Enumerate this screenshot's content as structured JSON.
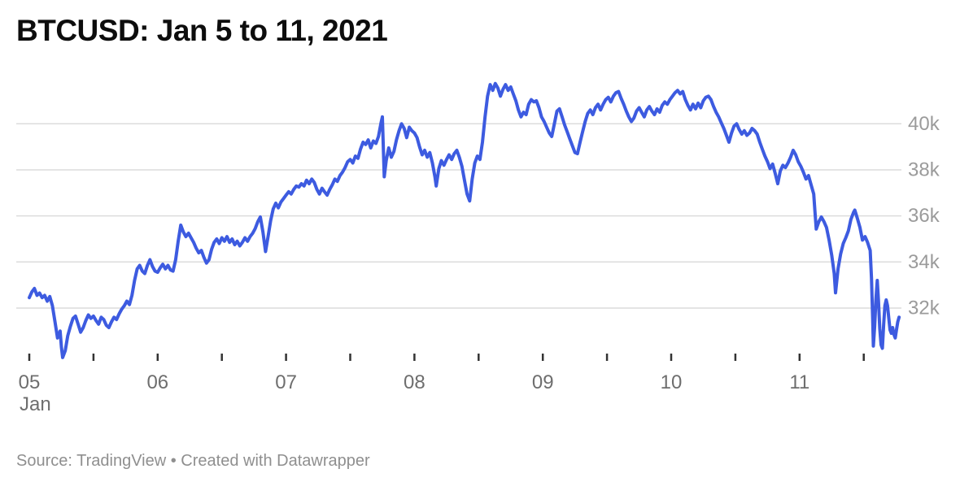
{
  "title": "BTCUSD: Jan 5 to 11, 2021",
  "source_note": "Source: TradingView • Created with Datawrapper",
  "colors": {
    "line": "#3d5be0",
    "grid": "#dcdcdc",
    "tick": "#333333",
    "x_label": "#6e6e6e",
    "y_label": "#9b9b9b",
    "title": "#0d0d0d",
    "source": "#8f8f8f",
    "background": "#ffffff"
  },
  "chart_data": {
    "type": "line",
    "title": "BTCUSD: Jan 5 to 11, 2021",
    "series_name": "BTCUSD",
    "x_unit": "day of January 2021 (fractional part = time of day)",
    "y_unit": "USD",
    "x_domain": [
      5,
      12
    ],
    "y_axis": {
      "tick_values": [
        32000,
        34000,
        36000,
        38000,
        40000
      ],
      "tick_labels": [
        "32k",
        "34k",
        "36k",
        "38k",
        "40k"
      ],
      "side": "right"
    },
    "x_axis": {
      "tick_days": [
        5,
        6,
        7,
        8,
        9,
        10,
        11
      ],
      "tick_labels": [
        "05",
        "06",
        "07",
        "08",
        "09",
        "10",
        "11"
      ],
      "month_label": "Jan",
      "minor_tick_step_days": 0.5,
      "minor_tick_start": 5.0,
      "minor_tick_end": 11.5
    },
    "grid": "horizontal",
    "legend": "none",
    "points": [
      [
        5.0,
        32450
      ],
      [
        5.02,
        32700
      ],
      [
        5.04,
        32850
      ],
      [
        5.06,
        32550
      ],
      [
        5.08,
        32650
      ],
      [
        5.1,
        32450
      ],
      [
        5.12,
        32550
      ],
      [
        5.14,
        32300
      ],
      [
        5.16,
        32500
      ],
      [
        5.18,
        32100
      ],
      [
        5.2,
        31400
      ],
      [
        5.22,
        30700
      ],
      [
        5.24,
        31000
      ],
      [
        5.25,
        30300
      ],
      [
        5.26,
        29850
      ],
      [
        5.28,
        30150
      ],
      [
        5.3,
        30800
      ],
      [
        5.32,
        31200
      ],
      [
        5.34,
        31550
      ],
      [
        5.36,
        31650
      ],
      [
        5.38,
        31300
      ],
      [
        5.4,
        30950
      ],
      [
        5.42,
        31150
      ],
      [
        5.44,
        31450
      ],
      [
        5.46,
        31700
      ],
      [
        5.48,
        31550
      ],
      [
        5.5,
        31650
      ],
      [
        5.52,
        31450
      ],
      [
        5.54,
        31300
      ],
      [
        5.56,
        31600
      ],
      [
        5.58,
        31500
      ],
      [
        5.6,
        31250
      ],
      [
        5.62,
        31150
      ],
      [
        5.64,
        31400
      ],
      [
        5.66,
        31600
      ],
      [
        5.68,
        31500
      ],
      [
        5.7,
        31750
      ],
      [
        5.72,
        31950
      ],
      [
        5.74,
        32100
      ],
      [
        5.76,
        32300
      ],
      [
        5.78,
        32150
      ],
      [
        5.8,
        32550
      ],
      [
        5.82,
        33200
      ],
      [
        5.84,
        33700
      ],
      [
        5.86,
        33850
      ],
      [
        5.88,
        33600
      ],
      [
        5.9,
        33500
      ],
      [
        5.92,
        33850
      ],
      [
        5.94,
        34100
      ],
      [
        5.96,
        33800
      ],
      [
        5.98,
        33600
      ],
      [
        6.0,
        33550
      ],
      [
        6.02,
        33750
      ],
      [
        6.04,
        33900
      ],
      [
        6.06,
        33700
      ],
      [
        6.08,
        33850
      ],
      [
        6.1,
        33650
      ],
      [
        6.12,
        33600
      ],
      [
        6.14,
        34100
      ],
      [
        6.16,
        34900
      ],
      [
        6.18,
        35600
      ],
      [
        6.2,
        35300
      ],
      [
        6.22,
        35100
      ],
      [
        6.24,
        35250
      ],
      [
        6.26,
        35050
      ],
      [
        6.28,
        34850
      ],
      [
        6.3,
        34600
      ],
      [
        6.32,
        34400
      ],
      [
        6.34,
        34500
      ],
      [
        6.36,
        34200
      ],
      [
        6.38,
        33950
      ],
      [
        6.4,
        34100
      ],
      [
        6.42,
        34550
      ],
      [
        6.44,
        34850
      ],
      [
        6.46,
        35000
      ],
      [
        6.48,
        34800
      ],
      [
        6.5,
        35050
      ],
      [
        6.52,
        34900
      ],
      [
        6.54,
        35100
      ],
      [
        6.56,
        34850
      ],
      [
        6.58,
        35000
      ],
      [
        6.6,
        34750
      ],
      [
        6.62,
        34900
      ],
      [
        6.64,
        34700
      ],
      [
        6.66,
        34850
      ],
      [
        6.68,
        35050
      ],
      [
        6.7,
        34900
      ],
      [
        6.72,
        35100
      ],
      [
        6.74,
        35250
      ],
      [
        6.76,
        35450
      ],
      [
        6.78,
        35750
      ],
      [
        6.8,
        35950
      ],
      [
        6.82,
        35300
      ],
      [
        6.84,
        34450
      ],
      [
        6.86,
        35100
      ],
      [
        6.88,
        35800
      ],
      [
        6.9,
        36300
      ],
      [
        6.92,
        36550
      ],
      [
        6.94,
        36350
      ],
      [
        6.96,
        36600
      ],
      [
        6.98,
        36750
      ],
      [
        7.0,
        36900
      ],
      [
        7.02,
        37050
      ],
      [
        7.04,
        36950
      ],
      [
        7.06,
        37150
      ],
      [
        7.08,
        37300
      ],
      [
        7.1,
        37250
      ],
      [
        7.12,
        37400
      ],
      [
        7.14,
        37300
      ],
      [
        7.16,
        37550
      ],
      [
        7.18,
        37400
      ],
      [
        7.2,
        37600
      ],
      [
        7.22,
        37450
      ],
      [
        7.24,
        37150
      ],
      [
        7.26,
        36950
      ],
      [
        7.28,
        37200
      ],
      [
        7.3,
        37050
      ],
      [
        7.32,
        36900
      ],
      [
        7.34,
        37150
      ],
      [
        7.36,
        37350
      ],
      [
        7.38,
        37600
      ],
      [
        7.4,
        37500
      ],
      [
        7.42,
        37750
      ],
      [
        7.44,
        37900
      ],
      [
        7.46,
        38100
      ],
      [
        7.48,
        38350
      ],
      [
        7.5,
        38450
      ],
      [
        7.52,
        38300
      ],
      [
        7.54,
        38600
      ],
      [
        7.56,
        38500
      ],
      [
        7.58,
        38900
      ],
      [
        7.6,
        39200
      ],
      [
        7.62,
        39100
      ],
      [
        7.64,
        39300
      ],
      [
        7.66,
        38950
      ],
      [
        7.68,
        39250
      ],
      [
        7.7,
        39150
      ],
      [
        7.72,
        39450
      ],
      [
        7.74,
        40050
      ],
      [
        7.75,
        40300
      ],
      [
        7.765,
        37700
      ],
      [
        7.78,
        38400
      ],
      [
        7.8,
        38950
      ],
      [
        7.82,
        38550
      ],
      [
        7.84,
        38800
      ],
      [
        7.86,
        39300
      ],
      [
        7.88,
        39700
      ],
      [
        7.9,
        40000
      ],
      [
        7.92,
        39800
      ],
      [
        7.94,
        39400
      ],
      [
        7.96,
        39850
      ],
      [
        7.98,
        39700
      ],
      [
        8.0,
        39600
      ],
      [
        8.02,
        39400
      ],
      [
        8.04,
        39000
      ],
      [
        8.06,
        38650
      ],
      [
        8.08,
        38850
      ],
      [
        8.1,
        38550
      ],
      [
        8.12,
        38750
      ],
      [
        8.14,
        38300
      ],
      [
        8.16,
        37700
      ],
      [
        8.17,
        37300
      ],
      [
        8.19,
        38050
      ],
      [
        8.21,
        38400
      ],
      [
        8.23,
        38200
      ],
      [
        8.25,
        38450
      ],
      [
        8.27,
        38650
      ],
      [
        8.29,
        38450
      ],
      [
        8.31,
        38700
      ],
      [
        8.33,
        38850
      ],
      [
        8.35,
        38550
      ],
      [
        8.37,
        38150
      ],
      [
        8.39,
        37550
      ],
      [
        8.41,
        36950
      ],
      [
        8.43,
        36650
      ],
      [
        8.45,
        37600
      ],
      [
        8.47,
        38300
      ],
      [
        8.49,
        38600
      ],
      [
        8.51,
        38450
      ],
      [
        8.53,
        39200
      ],
      [
        8.55,
        40300
      ],
      [
        8.57,
        41200
      ],
      [
        8.59,
        41700
      ],
      [
        8.61,
        41450
      ],
      [
        8.63,
        41750
      ],
      [
        8.65,
        41550
      ],
      [
        8.67,
        41200
      ],
      [
        8.69,
        41500
      ],
      [
        8.71,
        41700
      ],
      [
        8.73,
        41450
      ],
      [
        8.75,
        41600
      ],
      [
        8.77,
        41300
      ],
      [
        8.79,
        41000
      ],
      [
        8.81,
        40600
      ],
      [
        8.83,
        40300
      ],
      [
        8.85,
        40500
      ],
      [
        8.87,
        40400
      ],
      [
        8.89,
        40850
      ],
      [
        8.91,
        41050
      ],
      [
        8.93,
        40950
      ],
      [
        8.95,
        41000
      ],
      [
        8.97,
        40700
      ],
      [
        8.99,
        40300
      ],
      [
        9.01,
        40100
      ],
      [
        9.03,
        39850
      ],
      [
        9.05,
        39600
      ],
      [
        9.07,
        39450
      ],
      [
        9.09,
        40000
      ],
      [
        9.11,
        40550
      ],
      [
        9.13,
        40650
      ],
      [
        9.15,
        40300
      ],
      [
        9.17,
        39950
      ],
      [
        9.19,
        39650
      ],
      [
        9.21,
        39350
      ],
      [
        9.23,
        39050
      ],
      [
        9.25,
        38750
      ],
      [
        9.27,
        38700
      ],
      [
        9.29,
        39200
      ],
      [
        9.31,
        39650
      ],
      [
        9.33,
        40100
      ],
      [
        9.35,
        40450
      ],
      [
        9.37,
        40600
      ],
      [
        9.39,
        40400
      ],
      [
        9.41,
        40700
      ],
      [
        9.43,
        40850
      ],
      [
        9.45,
        40600
      ],
      [
        9.47,
        40850
      ],
      [
        9.49,
        41050
      ],
      [
        9.51,
        41150
      ],
      [
        9.53,
        40950
      ],
      [
        9.55,
        41200
      ],
      [
        9.57,
        41350
      ],
      [
        9.59,
        41400
      ],
      [
        9.61,
        41100
      ],
      [
        9.63,
        40850
      ],
      [
        9.65,
        40550
      ],
      [
        9.67,
        40300
      ],
      [
        9.69,
        40100
      ],
      [
        9.71,
        40250
      ],
      [
        9.73,
        40550
      ],
      [
        9.75,
        40700
      ],
      [
        9.77,
        40500
      ],
      [
        9.79,
        40300
      ],
      [
        9.81,
        40600
      ],
      [
        9.83,
        40750
      ],
      [
        9.85,
        40550
      ],
      [
        9.87,
        40400
      ],
      [
        9.89,
        40650
      ],
      [
        9.91,
        40500
      ],
      [
        9.93,
        40800
      ],
      [
        9.95,
        40950
      ],
      [
        9.97,
        40850
      ],
      [
        9.99,
        41050
      ],
      [
        10.01,
        41200
      ],
      [
        10.03,
        41350
      ],
      [
        10.05,
        41450
      ],
      [
        10.07,
        41300
      ],
      [
        10.09,
        41400
      ],
      [
        10.11,
        41050
      ],
      [
        10.13,
        40800
      ],
      [
        10.15,
        40600
      ],
      [
        10.17,
        40850
      ],
      [
        10.19,
        40650
      ],
      [
        10.21,
        40900
      ],
      [
        10.23,
        40700
      ],
      [
        10.25,
        41000
      ],
      [
        10.27,
        41150
      ],
      [
        10.29,
        41200
      ],
      [
        10.31,
        41050
      ],
      [
        10.33,
        40750
      ],
      [
        10.35,
        40500
      ],
      [
        10.37,
        40300
      ],
      [
        10.39,
        40050
      ],
      [
        10.41,
        39800
      ],
      [
        10.43,
        39500
      ],
      [
        10.45,
        39200
      ],
      [
        10.47,
        39600
      ],
      [
        10.49,
        39900
      ],
      [
        10.51,
        40000
      ],
      [
        10.53,
        39750
      ],
      [
        10.55,
        39550
      ],
      [
        10.57,
        39700
      ],
      [
        10.59,
        39500
      ],
      [
        10.61,
        39600
      ],
      [
        10.63,
        39800
      ],
      [
        10.65,
        39700
      ],
      [
        10.67,
        39550
      ],
      [
        10.69,
        39200
      ],
      [
        10.71,
        38900
      ],
      [
        10.73,
        38600
      ],
      [
        10.75,
        38350
      ],
      [
        10.77,
        38050
      ],
      [
        10.79,
        38250
      ],
      [
        10.81,
        37850
      ],
      [
        10.83,
        37400
      ],
      [
        10.85,
        37950
      ],
      [
        10.87,
        38200
      ],
      [
        10.89,
        38100
      ],
      [
        10.91,
        38300
      ],
      [
        10.93,
        38550
      ],
      [
        10.95,
        38850
      ],
      [
        10.97,
        38650
      ],
      [
        10.99,
        38350
      ],
      [
        11.01,
        38150
      ],
      [
        11.03,
        37900
      ],
      [
        11.05,
        37600
      ],
      [
        11.07,
        37750
      ],
      [
        11.09,
        37350
      ],
      [
        11.11,
        36950
      ],
      [
        11.12,
        36200
      ],
      [
        11.13,
        35430
      ],
      [
        11.15,
        35750
      ],
      [
        11.17,
        35950
      ],
      [
        11.19,
        35750
      ],
      [
        11.21,
        35500
      ],
      [
        11.23,
        34950
      ],
      [
        11.25,
        34300
      ],
      [
        11.27,
        33500
      ],
      [
        11.28,
        32660
      ],
      [
        11.3,
        33700
      ],
      [
        11.32,
        34350
      ],
      [
        11.34,
        34800
      ],
      [
        11.36,
        35050
      ],
      [
        11.38,
        35350
      ],
      [
        11.4,
        35850
      ],
      [
        11.42,
        36150
      ],
      [
        11.43,
        36250
      ],
      [
        11.45,
        35900
      ],
      [
        11.47,
        35500
      ],
      [
        11.49,
        34950
      ],
      [
        11.51,
        35100
      ],
      [
        11.53,
        34850
      ],
      [
        11.55,
        34500
      ],
      [
        11.56,
        33300
      ],
      [
        11.57,
        31500
      ],
      [
        11.575,
        30350
      ],
      [
        11.585,
        31200
      ],
      [
        11.595,
        32400
      ],
      [
        11.605,
        33200
      ],
      [
        11.615,
        32300
      ],
      [
        11.625,
        31100
      ],
      [
        11.635,
        30400
      ],
      [
        11.645,
        30250
      ],
      [
        11.655,
        31300
      ],
      [
        11.665,
        32100
      ],
      [
        11.675,
        32350
      ],
      [
        11.685,
        32100
      ],
      [
        11.695,
        31550
      ],
      [
        11.705,
        31050
      ],
      [
        11.715,
        30900
      ],
      [
        11.725,
        31150
      ],
      [
        11.735,
        30850
      ],
      [
        11.745,
        30700
      ],
      [
        11.755,
        31050
      ],
      [
        11.765,
        31400
      ],
      [
        11.775,
        31600
      ]
    ]
  }
}
